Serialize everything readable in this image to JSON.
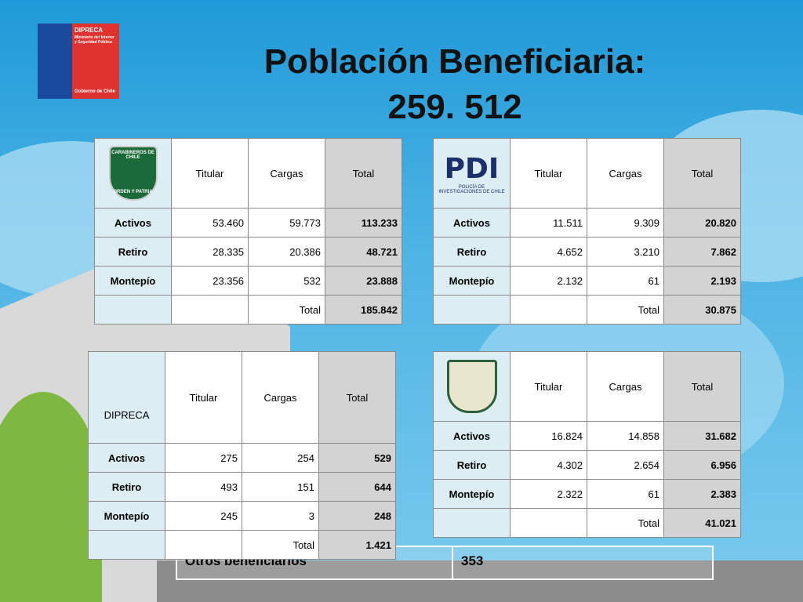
{
  "header": {
    "org": "DIPRECA",
    "ministry": "Ministerio del Interior y Seguridad Pública",
    "government": "Gobierno de Chile"
  },
  "title": {
    "line1": "Población Beneficiaria:",
    "line2": "259. 512"
  },
  "tables": [
    {
      "logo_text": [
        "CARABINEROS DE CHILE",
        "ORDEN Y PATRIA"
      ],
      "columns": [
        "Titular",
        "Cargas",
        "Total"
      ],
      "rows": [
        [
          "Activos",
          "53.460",
          "59.773",
          "113.233"
        ],
        [
          "Retiro",
          "28.335",
          "20.386",
          "48.721"
        ],
        [
          "Montepío",
          "23.356",
          "532",
          "23.888"
        ]
      ],
      "total": {
        "label": "Total",
        "value": "185.842"
      }
    },
    {
      "logo_text": [
        "PDI",
        "POLICÍA DE INVESTIGACIONES DE CHILE"
      ],
      "columns": [
        "Titular",
        "Cargas",
        "Total"
      ],
      "rows": [
        [
          "Activos",
          "11.511",
          "9.309",
          "20.820"
        ],
        [
          "Retiro",
          "4.652",
          "3.210",
          "7.862"
        ],
        [
          "Montepío",
          "2.132",
          "61",
          "2.193"
        ]
      ],
      "total": {
        "label": "Total",
        "value": "30.875"
      }
    },
    {
      "name": "DIPRECA",
      "columns": [
        "Titular",
        "Cargas",
        "Total"
      ],
      "rows": [
        [
          "Activos",
          "275",
          "254",
          "529"
        ],
        [
          "Retiro",
          "493",
          "151",
          "644"
        ],
        [
          "Montepío",
          "245",
          "3",
          "248"
        ]
      ],
      "total": {
        "label": "Total",
        "value": "1.421"
      }
    },
    {
      "columns": [
        "Titular",
        "Cargas",
        "Total"
      ],
      "rows": [
        [
          "Activos",
          "16.824",
          "14.858",
          "31.682"
        ],
        [
          "Retiro",
          "4.302",
          "2.654",
          "6.956"
        ],
        [
          "Montepío",
          "2.322",
          "61",
          "2.383"
        ]
      ],
      "total": {
        "label": "Total",
        "value": "41.021"
      }
    }
  ],
  "others": {
    "label": "Otros beneficiarios",
    "value": "353"
  }
}
